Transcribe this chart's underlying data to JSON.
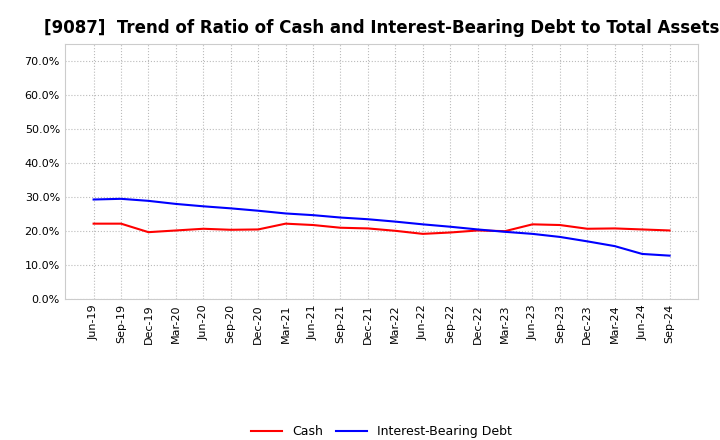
{
  "title": "[9087]  Trend of Ratio of Cash and Interest-Bearing Debt to Total Assets",
  "x_labels": [
    "Jun-19",
    "Sep-19",
    "Dec-19",
    "Mar-20",
    "Jun-20",
    "Sep-20",
    "Dec-20",
    "Mar-21",
    "Jun-21",
    "Sep-21",
    "Dec-21",
    "Mar-22",
    "Jun-22",
    "Sep-22",
    "Dec-22",
    "Mar-23",
    "Jun-23",
    "Sep-23",
    "Dec-23",
    "Mar-24",
    "Jun-24",
    "Sep-24"
  ],
  "cash": [
    0.222,
    0.222,
    0.197,
    0.202,
    0.207,
    0.204,
    0.205,
    0.222,
    0.218,
    0.21,
    0.208,
    0.201,
    0.192,
    0.196,
    0.202,
    0.2,
    0.22,
    0.218,
    0.207,
    0.208,
    0.205,
    0.202
  ],
  "interest_bearing_debt": [
    0.293,
    0.295,
    0.289,
    0.28,
    0.273,
    0.267,
    0.26,
    0.252,
    0.247,
    0.24,
    0.235,
    0.228,
    0.22,
    0.213,
    0.205,
    0.198,
    0.192,
    0.183,
    0.17,
    0.156,
    0.133,
    0.128
  ],
  "cash_color": "#ff0000",
  "debt_color": "#0000ff",
  "background_color": "#ffffff",
  "grid_color": "#bbbbbb",
  "ylim": [
    0.0,
    0.75
  ],
  "yticks": [
    0.0,
    0.1,
    0.2,
    0.3,
    0.4,
    0.5,
    0.6,
    0.7
  ],
  "legend_cash": "Cash",
  "legend_debt": "Interest-Bearing Debt",
  "title_fontsize": 12,
  "axis_fontsize": 8,
  "legend_fontsize": 9
}
